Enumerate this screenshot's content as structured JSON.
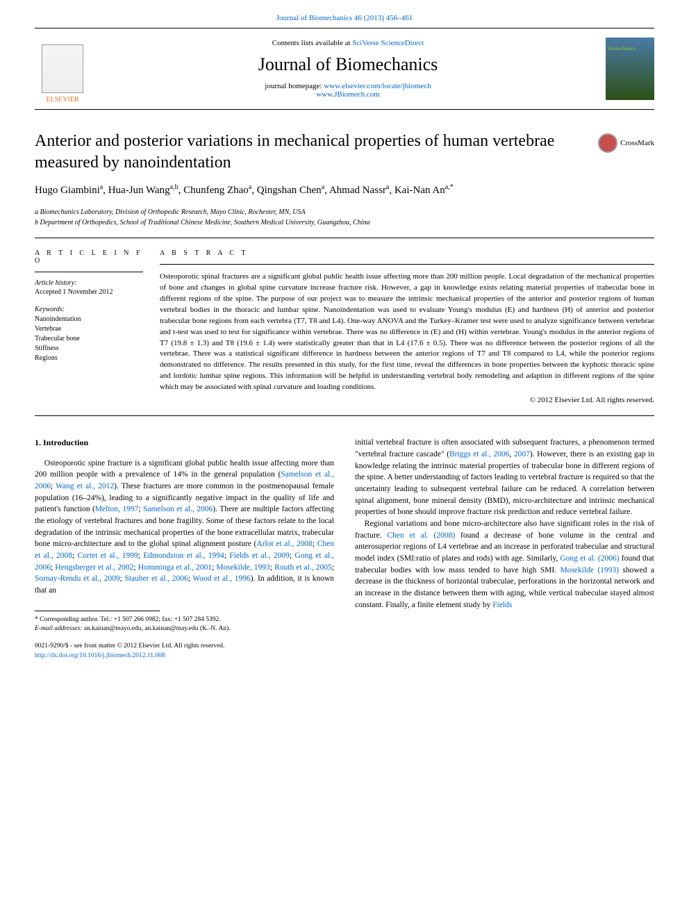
{
  "top_link": "Journal of Biomechanics 46 (2013) 456–461",
  "header": {
    "contents_prefix": "Contents lists available at ",
    "contents_link": "SciVerse ScienceDirect",
    "journal_name": "Journal of Biomechanics",
    "homepage_prefix": "journal homepage: ",
    "homepage_url1": "www.elsevier.com/locate/jbiomech",
    "homepage_url2": "www.JBiomech.com",
    "elsevier_label": "ELSEVIER"
  },
  "crossmark_label": "CrossMark",
  "title": "Anterior and posterior variations in mechanical properties of human vertebrae measured by nanoindentation",
  "authors_html": "Hugo Giambini<sup>a</sup>, Hua-Jun Wang<sup>a,b</sup>, Chunfeng Zhao<sup>a</sup>, Qingshan Chen<sup>a</sup>, Ahmad Nassr<sup>a</sup>, Kai-Nan An<sup>a,*</sup>",
  "affiliations": [
    "a Biomechanics Laboratory, Division of Orthopedic Research, Mayo Clinic, Rochester, MN, USA",
    "b Department of Orthopedics, School of Traditional Chinese Medicine, Southern Medical University, Guangzhou, China"
  ],
  "article_info_label": "A R T I C L E  I N F O",
  "abstract_label": "A B S T R A C T",
  "history_label": "Article history:",
  "history_value": "Accepted 1 November 2012",
  "keywords_label": "Keywords:",
  "keywords": [
    "Nanoindentation",
    "Vertebrae",
    "Trabecular bone",
    "Stiffness",
    "Regions"
  ],
  "abstract_text": "Osteoporotic spinal fractures are a significant global public health issue affecting more than 200 million people. Local degradation of the mechanical properties of bone and changes in global spine curvature increase fracture risk. However, a gap in knowledge exists relating material properties of trabecular bone in different regions of the spine. The purpose of our project was to measure the intrinsic mechanical properties of the anterior and posterior regions of human vertebral bodies in the thoracic and lumbar spine. Nanoindentation was used to evaluate Young's modulus (E) and hardness (H) of anterior and posterior trabecular bone regions from each vertebra (T7, T8 and L4). One-way ANOVA and the Turkey–Kramer test were used to analyze significance between vertebrae and t-test was used to test for significance within vertebrae. There was no difference in (E) and (H) within vertebrae. Young's modulus in the anterior regions of T7 (19.8 ± 1.3) and T8 (19.6 ± 1.4) were statistically greater than that in L4 (17.6 ± 0.5). There was no difference between the posterior regions of all the vertebrae. There was a statistical significant difference in hardness between the anterior regions of T7 and T8 compared to L4, while the posterior regions demonstrated no difference. The results presented in this study, for the first time, reveal the differences in bone properties between the kyphotic thoracic spine and lordotic lumbar spine regions. This information will be helpful in understanding vertebral body remodeling and adaption in different regions of the spine which may be associated with spinal curvature and loading conditions.",
  "copyright": "© 2012 Elsevier Ltd. All rights reserved.",
  "intro_heading": "1. Introduction",
  "intro_col1_p1_a": "Osteoporotic spine fracture is a significant global public health issue affecting more than 200 million people with a prevalence of 14% in the general population (",
  "intro_col1_ref1": "Samelson et al., 2006",
  "intro_col1_p1_b": "; ",
  "intro_col1_ref2": "Wang et al., 2012",
  "intro_col1_p1_c": "). These fractures are more common in the postmenopausal female population (16–24%), leading to a significantly negative impact in the quality of life and patient's function (",
  "intro_col1_ref3": "Melton, 1997",
  "intro_col1_p1_d": "; ",
  "intro_col1_ref4": "Samelson et al., 2006",
  "intro_col1_p1_e": "). There are multiple factors affecting the etiology of vertebral fractures and bone fragility. Some of these factors relate to the local degradation of the intrinsic mechanical properties of the bone extracellular matrix, trabecular bone micro-architecture and to the global spinal alignment posture (",
  "intro_col1_ref5": "Arlot et al., 2008",
  "intro_col1_p1_f": "; ",
  "intro_col1_ref6": "Chen et al., 2008",
  "intro_col1_p1_g": "; ",
  "intro_col1_ref7": "Cortet et al., 1999",
  "intro_col1_p1_h": "; ",
  "intro_col1_ref8": "Edmondston et al., 1994",
  "intro_col1_p1_i": "; ",
  "intro_col1_ref9": "Fields et al., 2009",
  "intro_col1_p1_j": "; ",
  "intro_col1_ref10": "Gong et al., 2006",
  "intro_col1_p1_k": "; ",
  "intro_col1_ref11": "Hengsberger et al., 2002",
  "intro_col1_p1_l": "; ",
  "intro_col1_ref12": "Homminga et al., 2001",
  "intro_col1_p1_m": "; ",
  "intro_col1_ref13": "Mosekilde, 1993",
  "intro_col1_p1_n": "; ",
  "intro_col1_ref14": "Routh et al., 2005",
  "intro_col1_p1_o": "; ",
  "intro_col1_ref15": "Sornay-Rendu et al., 2009",
  "intro_col1_p1_p": "; ",
  "intro_col1_ref16": "Stauber et al., 2006",
  "intro_col1_p1_q": "; ",
  "intro_col1_ref17": "Wood et al., 1996",
  "intro_col1_p1_r": "). In addition, it is known that an",
  "intro_col2_p1_a": "initial vertebral fracture is often associated with subsequent fractures, a phenomenon termed \"vertebral fracture cascade\" (",
  "intro_col2_ref1": "Briggs et al., 2006",
  "intro_col2_p1_b": ", ",
  "intro_col2_ref2": "2007",
  "intro_col2_p1_c": "). However, there is an existing gap in knowledge relating the intrinsic material properties of trabecular bone in different regions of the spine. A better understanding of factors leading to vertebral fracture is required so that the uncertainty leading to subsequent vertebral failure can be reduced. A correlation between spinal alignment, bone mineral density (BMD), micro-architecture and intrinsic mechanical properties of bone should improve fracture risk prediction and reduce vertebral failure.",
  "intro_col2_p2_a": "Regional variations and bone micro-architecture also have significant roles in the risk of fracture. ",
  "intro_col2_ref3": "Chen et al. (2008)",
  "intro_col2_p2_b": " found a decrease of bone volume in the central and anterosuperior regions of L4 vertebrae and an increase in perforated trabeculae and structural model index (SMI:ratio of plates and rods) with age. Similarly, ",
  "intro_col2_ref4": "Gong et al. (2006)",
  "intro_col2_p2_c": " found that trabecular bodies with low mass tended to have high SMI. ",
  "intro_col2_ref5": "Mosekilde (1993)",
  "intro_col2_p2_d": " showed a decrease in the thickness of horizontal trabeculae, perforations in the horizontal network and an increase in the distance between them with aging, while vertical trabeculae stayed almost constant. Finally, a finite element study by ",
  "intro_col2_ref6": "Fields",
  "corr_author": "* Corresponding author. Tel.: +1 507 266 0982; fax: +1 507 284 5392.",
  "corr_email_label": "E-mail addresses:",
  "corr_email": " an.kainan@mayo.edu, an.kainan@may.edu (K.-N. An).",
  "footer_issn": "0021-9290/$ - see front matter © 2012 Elsevier Ltd. All rights reserved.",
  "footer_doi": "http://dx.doi.org/10.1016/j.jbiomech.2012.11.008",
  "colors": {
    "link": "#0066cc",
    "elsevier_orange": "#e37222",
    "text": "#000000",
    "bg": "#ffffff"
  }
}
